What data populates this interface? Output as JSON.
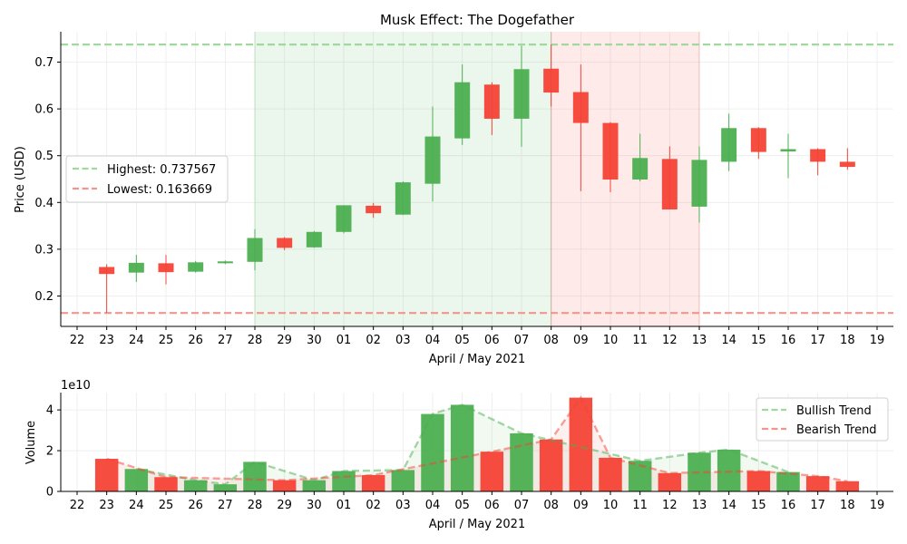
{
  "chart_data": [
    {
      "type": "candlestick",
      "title": "Musk Effect: The Dogefather",
      "xlabel": "April / May 2021",
      "ylabel": "Price (USD)",
      "x_ticks": [
        "22",
        "23",
        "24",
        "25",
        "26",
        "27",
        "28",
        "29",
        "30",
        "01",
        "02",
        "03",
        "04",
        "05",
        "06",
        "07",
        "08",
        "09",
        "10",
        "11",
        "12",
        "13",
        "14",
        "15",
        "16",
        "17",
        "18",
        "19"
      ],
      "y_ticks": [
        "0.2",
        "0.3",
        "0.4",
        "0.5",
        "0.6",
        "0.7"
      ],
      "ylim": [
        0.135,
        0.765
      ],
      "highest_label": "Highest: 0.737567",
      "lowest_label": "Lowest: 0.163669",
      "highest_value": 0.737567,
      "lowest_value": 0.163669,
      "shaded_ranges": [
        {
          "from": "28",
          "to": "08",
          "color": "#4caf50"
        },
        {
          "from": "08",
          "to": "13",
          "color": "#f44336"
        }
      ],
      "candles": [
        {
          "date": "23",
          "open": 0.262,
          "close": 0.247,
          "high": 0.268,
          "low": 0.164
        },
        {
          "date": "24",
          "open": 0.25,
          "close": 0.271,
          "high": 0.288,
          "low": 0.23
        },
        {
          "date": "25",
          "open": 0.27,
          "close": 0.251,
          "high": 0.288,
          "low": 0.225
        },
        {
          "date": "26",
          "open": 0.252,
          "close": 0.272,
          "high": 0.275,
          "low": 0.25
        },
        {
          "date": "27",
          "open": 0.27,
          "close": 0.274,
          "high": 0.276,
          "low": 0.268
        },
        {
          "date": "28",
          "open": 0.273,
          "close": 0.324,
          "high": 0.343,
          "low": 0.255
        },
        {
          "date": "29",
          "open": 0.324,
          "close": 0.303,
          "high": 0.326,
          "low": 0.298
        },
        {
          "date": "30",
          "open": 0.304,
          "close": 0.337,
          "high": 0.339,
          "low": 0.303
        },
        {
          "date": "01",
          "open": 0.337,
          "close": 0.394,
          "high": 0.394,
          "low": 0.334
        },
        {
          "date": "02",
          "open": 0.393,
          "close": 0.377,
          "high": 0.399,
          "low": 0.367
        },
        {
          "date": "03",
          "open": 0.374,
          "close": 0.443,
          "high": 0.445,
          "low": 0.373
        },
        {
          "date": "04",
          "open": 0.44,
          "close": 0.541,
          "high": 0.605,
          "low": 0.402
        },
        {
          "date": "05",
          "open": 0.537,
          "close": 0.657,
          "high": 0.695,
          "low": 0.523
        },
        {
          "date": "06",
          "open": 0.652,
          "close": 0.579,
          "high": 0.657,
          "low": 0.544
        },
        {
          "date": "07",
          "open": 0.579,
          "close": 0.685,
          "high": 0.735,
          "low": 0.519
        },
        {
          "date": "08",
          "open": 0.686,
          "close": 0.635,
          "high": 0.738,
          "low": 0.605
        },
        {
          "date": "09",
          "open": 0.636,
          "close": 0.57,
          "high": 0.695,
          "low": 0.424
        },
        {
          "date": "10",
          "open": 0.57,
          "close": 0.449,
          "high": 0.572,
          "low": 0.422
        },
        {
          "date": "11",
          "open": 0.449,
          "close": 0.495,
          "high": 0.547,
          "low": 0.445
        },
        {
          "date": "12",
          "open": 0.493,
          "close": 0.385,
          "high": 0.52,
          "low": 0.385
        },
        {
          "date": "13",
          "open": 0.391,
          "close": 0.491,
          "high": 0.52,
          "low": 0.357
        },
        {
          "date": "14",
          "open": 0.487,
          "close": 0.559,
          "high": 0.59,
          "low": 0.467
        },
        {
          "date": "15",
          "open": 0.559,
          "close": 0.508,
          "high": 0.561,
          "low": 0.493
        },
        {
          "date": "16",
          "open": 0.509,
          "close": 0.514,
          "high": 0.547,
          "low": 0.452
        },
        {
          "date": "17",
          "open": 0.514,
          "close": 0.487,
          "high": 0.516,
          "low": 0.458
        },
        {
          "date": "18",
          "open": 0.487,
          "close": 0.476,
          "high": 0.516,
          "low": 0.47
        }
      ],
      "legend": {
        "placement": "center-left"
      },
      "colors": {
        "up": "#4caf50",
        "down": "#f44336",
        "highest_line": "#9fd99c",
        "lowest_line": "#f3958f"
      },
      "grid": true
    },
    {
      "type": "bar",
      "xlabel": "April / May 2021",
      "ylabel": "Volume",
      "offset_label": "1e10",
      "x_ticks": [
        "22",
        "23",
        "24",
        "25",
        "26",
        "27",
        "28",
        "29",
        "30",
        "01",
        "02",
        "03",
        "04",
        "05",
        "06",
        "07",
        "08",
        "09",
        "10",
        "11",
        "12",
        "13",
        "14",
        "15",
        "16",
        "17",
        "18",
        "19"
      ],
      "y_ticks": [
        "0",
        "2",
        "4"
      ],
      "ylim": [
        0,
        4.85
      ],
      "bars": [
        {
          "date": "23",
          "value": 1.6,
          "direction": "down"
        },
        {
          "date": "24",
          "value": 1.1,
          "direction": "up"
        },
        {
          "date": "25",
          "value": 0.7,
          "direction": "down"
        },
        {
          "date": "26",
          "value": 0.55,
          "direction": "up"
        },
        {
          "date": "27",
          "value": 0.35,
          "direction": "up"
        },
        {
          "date": "28",
          "value": 1.45,
          "direction": "up"
        },
        {
          "date": "29",
          "value": 0.55,
          "direction": "down"
        },
        {
          "date": "30",
          "value": 0.55,
          "direction": "up"
        },
        {
          "date": "01",
          "value": 1.0,
          "direction": "up"
        },
        {
          "date": "02",
          "value": 0.8,
          "direction": "down"
        },
        {
          "date": "03",
          "value": 1.05,
          "direction": "up"
        },
        {
          "date": "04",
          "value": 3.8,
          "direction": "up"
        },
        {
          "date": "05",
          "value": 4.25,
          "direction": "up"
        },
        {
          "date": "06",
          "value": 1.95,
          "direction": "down"
        },
        {
          "date": "07",
          "value": 2.85,
          "direction": "up"
        },
        {
          "date": "08",
          "value": 2.55,
          "direction": "down"
        },
        {
          "date": "09",
          "value": 4.6,
          "direction": "down"
        },
        {
          "date": "10",
          "value": 1.65,
          "direction": "down"
        },
        {
          "date": "11",
          "value": 1.5,
          "direction": "up"
        },
        {
          "date": "12",
          "value": 0.9,
          "direction": "down"
        },
        {
          "date": "13",
          "value": 1.9,
          "direction": "up"
        },
        {
          "date": "14",
          "value": 2.05,
          "direction": "up"
        },
        {
          "date": "15",
          "value": 1.0,
          "direction": "down"
        },
        {
          "date": "16",
          "value": 0.95,
          "direction": "up"
        },
        {
          "date": "17",
          "value": 0.75,
          "direction": "down"
        },
        {
          "date": "18",
          "value": 0.5,
          "direction": "down"
        }
      ],
      "series": [
        {
          "name": "Bullish Trend",
          "color": "#4caf50",
          "points": [
            {
              "date": "24",
              "value": 1.1
            },
            {
              "date": "26",
              "value": 0.55
            },
            {
              "date": "27",
              "value": 0.35
            },
            {
              "date": "28",
              "value": 1.45
            },
            {
              "date": "30",
              "value": 0.55
            },
            {
              "date": "01",
              "value": 1.0
            },
            {
              "date": "03",
              "value": 1.05
            },
            {
              "date": "04",
              "value": 3.8
            },
            {
              "date": "05",
              "value": 4.25
            },
            {
              "date": "07",
              "value": 2.85
            },
            {
              "date": "11",
              "value": 1.5
            },
            {
              "date": "13",
              "value": 1.9
            },
            {
              "date": "14",
              "value": 2.05
            },
            {
              "date": "16",
              "value": 0.95
            }
          ]
        },
        {
          "name": "Bearish Trend",
          "color": "#f44336",
          "points": [
            {
              "date": "23",
              "value": 1.6
            },
            {
              "date": "25",
              "value": 0.7
            },
            {
              "date": "29",
              "value": 0.55
            },
            {
              "date": "02",
              "value": 0.8
            },
            {
              "date": "06",
              "value": 1.95
            },
            {
              "date": "08",
              "value": 2.55
            },
            {
              "date": "09",
              "value": 4.6
            },
            {
              "date": "10",
              "value": 1.65
            },
            {
              "date": "12",
              "value": 0.9
            },
            {
              "date": "15",
              "value": 1.0
            },
            {
              "date": "17",
              "value": 0.75
            },
            {
              "date": "18",
              "value": 0.5
            }
          ]
        }
      ],
      "legend": {
        "placement": "top-right"
      },
      "colors": {
        "up": "#4caf50",
        "down": "#f44336"
      },
      "grid": true
    }
  ]
}
